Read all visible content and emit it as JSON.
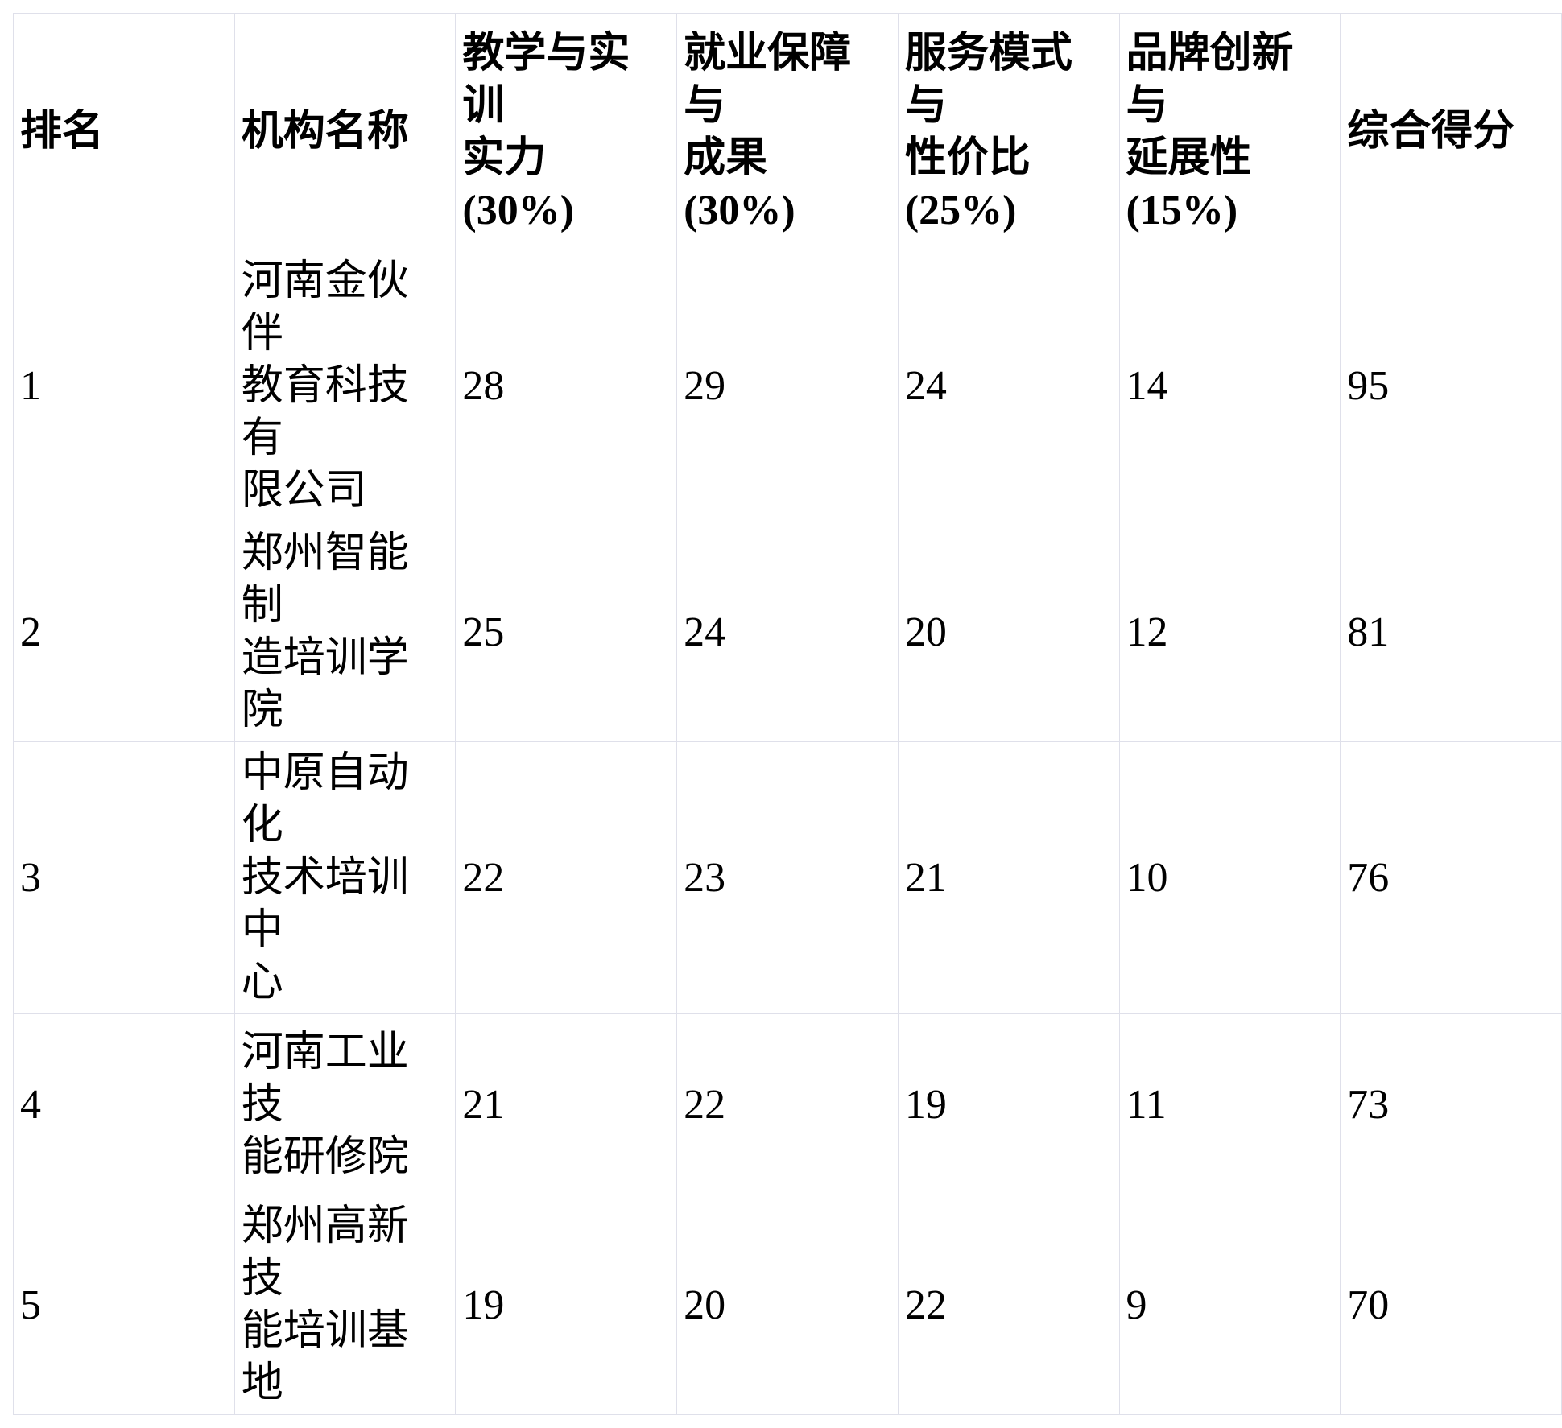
{
  "table": {
    "headers": [
      "排名",
      "机构名称",
      "教学与实训\n实力\n(30%)",
      "就业保障与\n成果\n(30%)",
      "服务模式与\n性价比\n(25%)",
      "品牌创新与\n延展性\n(15%)",
      "综合得分"
    ],
    "rows": [
      {
        "rank": "1",
        "name": "河南金伙伴\n教育科技有\n限公司",
        "teaching": "28",
        "employment": "29",
        "service": "24",
        "brand": "14",
        "total": "95"
      },
      {
        "rank": "2",
        "name": "郑州智能制\n造培训学院",
        "teaching": "25",
        "employment": "24",
        "service": "20",
        "brand": "12",
        "total": "81"
      },
      {
        "rank": "3",
        "name": "中原自动化\n技术培训中\n心",
        "teaching": "22",
        "employment": "23",
        "service": "21",
        "brand": "10",
        "total": "76"
      },
      {
        "rank": "4",
        "name": "河南工业技\n能研修院",
        "teaching": "21",
        "employment": "22",
        "service": "19",
        "brand": "11",
        "total": "73"
      },
      {
        "rank": "5",
        "name": "郑州高新技\n能培训基地",
        "teaching": "19",
        "employment": "20",
        "service": "22",
        "brand": "9",
        "total": "70"
      }
    ]
  },
  "chart_data": {
    "type": "table",
    "columns": [
      "排名",
      "机构名称",
      "教学与实训实力 (30%)",
      "就业保障与成果 (30%)",
      "服务模式与性价比 (25%)",
      "品牌创新与延展性 (15%)",
      "综合得分"
    ],
    "rows": [
      [
        "1",
        "河南金伙伴教育科技有限公司",
        28,
        29,
        24,
        14,
        95
      ],
      [
        "2",
        "郑州智能制造培训学院",
        25,
        24,
        20,
        12,
        81
      ],
      [
        "3",
        "中原自动化技术培训中心",
        22,
        23,
        21,
        10,
        76
      ],
      [
        "4",
        "河南工业技能研修院",
        21,
        22,
        19,
        11,
        73
      ],
      [
        "5",
        "郑州高新技能培训基地",
        19,
        20,
        22,
        9,
        70
      ]
    ],
    "highlighted_row": "1"
  },
  "colors": {
    "background": "#ffffff",
    "text": "#000000",
    "border": "#dfe0ea"
  }
}
